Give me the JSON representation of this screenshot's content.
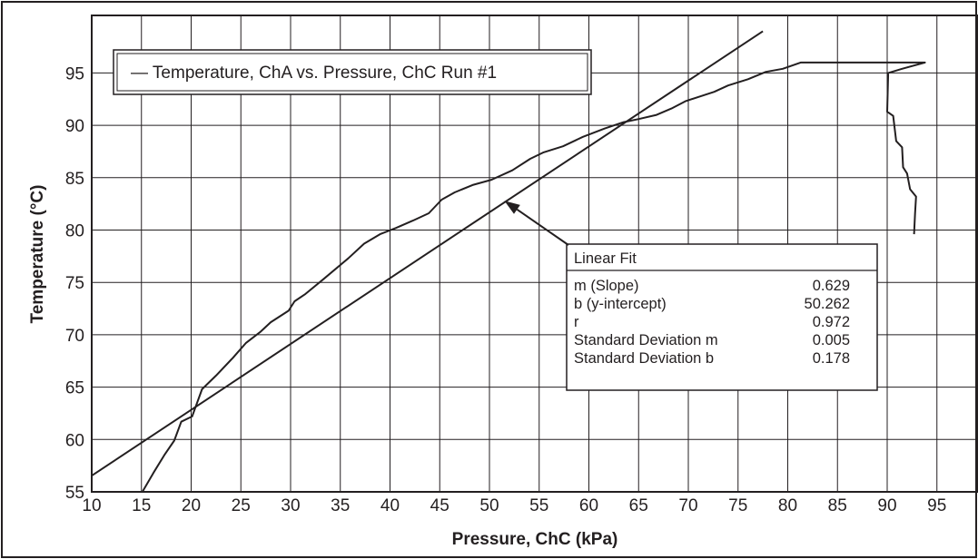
{
  "chart_data": {
    "type": "line",
    "title": "",
    "xlabel": "Pressure, ChC (kPa)",
    "ylabel": "Temperature (°C)",
    "xlim": [
      10,
      97
    ],
    "ylim": [
      55,
      99
    ],
    "xticks": [
      10,
      15,
      20,
      25,
      30,
      35,
      40,
      45,
      50,
      55,
      60,
      65,
      70,
      75,
      80,
      85,
      90,
      95
    ],
    "yticks": [
      55,
      60,
      65,
      70,
      75,
      80,
      85,
      90,
      95
    ],
    "grid": true,
    "legend": {
      "placement": "top-left",
      "entries": [
        "— Temperature, ChA vs. Pressure, ChC Run #1"
      ]
    },
    "series": [
      {
        "name": "Temperature, ChA vs. Pressure, ChC Run #1",
        "x": [
          15.1,
          16.2,
          17.3,
          18.3,
          19.0,
          20.1,
          21.1,
          22.5,
          24.2,
          25.5,
          27.0,
          28.0,
          29.8,
          30.4,
          31.5,
          33.3,
          35.8,
          37.4,
          39.0,
          40.6,
          42.3,
          43.9,
          45.2,
          46.5,
          48.3,
          50.2,
          52.3,
          54.1,
          55.4,
          57.4,
          59.4,
          61.6,
          63.5,
          65.0,
          66.8,
          68.3,
          69.7,
          71.0,
          72.6,
          74.0,
          76.0,
          77.8,
          79.5,
          81.3,
          83.0,
          86.0,
          89.0,
          92.0,
          93.8,
          91.5,
          90.1,
          90.0,
          90.6,
          90.9,
          91.5,
          91.6,
          92.0,
          92.3,
          92.9,
          92.8,
          92.7
        ],
        "y": [
          55,
          56.8,
          58.5,
          59.9,
          61.7,
          62.2,
          64.8,
          66.1,
          67.8,
          69.2,
          70.3,
          71.2,
          72.3,
          73.2,
          73.9,
          75.3,
          77.3,
          78.7,
          79.6,
          80.2,
          80.9,
          81.6,
          82.9,
          83.6,
          84.3,
          84.8,
          85.7,
          86.8,
          87.4,
          88.0,
          88.9,
          89.7,
          90.3,
          90.6,
          91.0,
          91.6,
          92.3,
          92.7,
          93.2,
          93.8,
          94.4,
          95.1,
          95.4,
          96.0,
          96.0,
          96.0,
          96.0,
          96.0,
          96.0,
          95.4,
          95.0,
          91.3,
          90.9,
          88.5,
          87.9,
          86.0,
          85.4,
          83.9,
          83.2,
          81.6,
          79.6
        ]
      },
      {
        "name": "Linear Fit",
        "x": [
          10,
          77.5
        ],
        "y": [
          56.54,
          98.99
        ]
      }
    ],
    "annotations": {
      "fit_box": {
        "title": "Linear Fit",
        "rows": [
          {
            "label": "m (Slope)",
            "value": "0.629"
          },
          {
            "label": "b (y-intercept)",
            "value": "50.262"
          },
          {
            "label": "r",
            "value": "0.972"
          },
          {
            "label": "Standard Deviation m",
            "value": "0.005"
          },
          {
            "label": "Standard Deviation b",
            "value": "0.178"
          }
        ]
      },
      "arrow_target": {
        "x": 51.5,
        "y": 82.8
      }
    }
  }
}
